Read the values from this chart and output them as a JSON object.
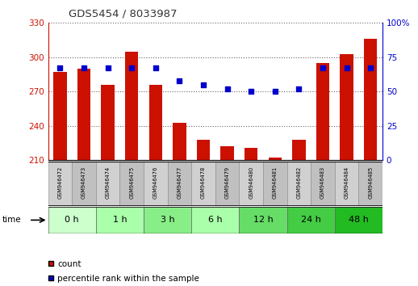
{
  "title": "GDS5454 / 8033987",
  "samples": [
    "GSM946472",
    "GSM946473",
    "GSM946474",
    "GSM946475",
    "GSM946476",
    "GSM946477",
    "GSM946478",
    "GSM946479",
    "GSM946480",
    "GSM946481",
    "GSM946482",
    "GSM946483",
    "GSM946484",
    "GSM946485"
  ],
  "counts": [
    287,
    290,
    276,
    305,
    276,
    243,
    228,
    222,
    221,
    212,
    228,
    295,
    303,
    316
  ],
  "percentiles": [
    67,
    67,
    67,
    67,
    67,
    58,
    55,
    52,
    50,
    50,
    52,
    67,
    67,
    67
  ],
  "ylim_left": [
    210,
    330
  ],
  "ylim_right": [
    0,
    100
  ],
  "yticks_left": [
    210,
    240,
    270,
    300,
    330
  ],
  "yticks_right": [
    0,
    25,
    50,
    75,
    100
  ],
  "bar_color": "#cc1100",
  "dot_color": "#0000cc",
  "time_groups": [
    {
      "label": "0 h",
      "start": 0,
      "end": 2
    },
    {
      "label": "1 h",
      "start": 2,
      "end": 4
    },
    {
      "label": "3 h",
      "start": 4,
      "end": 6
    },
    {
      "label": "6 h",
      "start": 6,
      "end": 8
    },
    {
      "label": "12 h",
      "start": 8,
      "end": 10
    },
    {
      "label": "24 h",
      "start": 10,
      "end": 12
    },
    {
      "label": "48 h",
      "start": 12,
      "end": 14
    }
  ],
  "time_group_colors": [
    "#ccffcc",
    "#aaffaa",
    "#88ee88",
    "#aaffaa",
    "#66dd66",
    "#44cc44",
    "#22bb22"
  ],
  "sample_bg_colors": [
    "#d0d0d0",
    "#c0c0c0"
  ],
  "legend_count": "count",
  "legend_pct": "percentile rank within the sample",
  "left_axis_color": "#cc1100",
  "right_axis_color": "#0000cc",
  "title_color": "#333333"
}
